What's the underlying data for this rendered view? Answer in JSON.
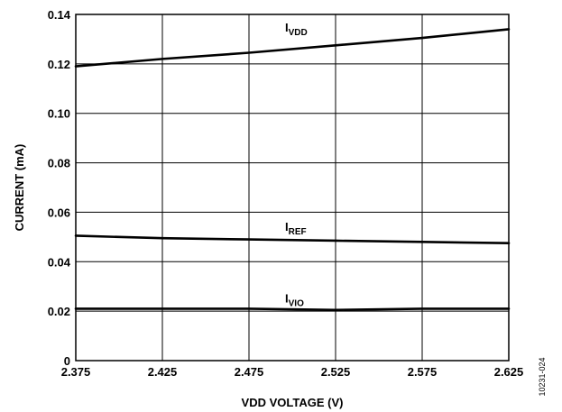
{
  "chart_data": {
    "type": "line",
    "xlabel": "VDD VOLTAGE (V)",
    "ylabel": "CURRENT (mA)",
    "xlim": [
      2.375,
      2.625
    ],
    "ylim": [
      0,
      0.14
    ],
    "x_ticks": [
      2.375,
      2.425,
      2.475,
      2.525,
      2.575,
      2.625
    ],
    "x_tick_labels": [
      "2.375",
      "2.425",
      "2.475",
      "2.525",
      "2.575",
      "2.625"
    ],
    "y_ticks": [
      0,
      0.02,
      0.04,
      0.06,
      0.08,
      0.1,
      0.12,
      0.14
    ],
    "y_tick_labels": [
      "0",
      "0.02",
      "0.04",
      "0.06",
      "0.08",
      "0.10",
      "0.12",
      "0.14"
    ],
    "grid": true,
    "legend": "inline labels above each curve",
    "series": [
      {
        "name": "IVDD",
        "label_main": "I",
        "label_sub": "VDD",
        "label_at": [
          2.5,
          0.133
        ],
        "x": [
          2.375,
          2.425,
          2.475,
          2.525,
          2.575,
          2.625
        ],
        "values": [
          0.119,
          0.122,
          0.1245,
          0.1275,
          0.1305,
          0.134
        ]
      },
      {
        "name": "IREF",
        "label_main": "I",
        "label_sub": "REF",
        "label_at": [
          2.5,
          0.0525
        ],
        "x": [
          2.375,
          2.425,
          2.475,
          2.525,
          2.575,
          2.625
        ],
        "values": [
          0.0505,
          0.0495,
          0.049,
          0.0485,
          0.048,
          0.0475
        ]
      },
      {
        "name": "IVIO",
        "label_main": "I",
        "label_sub": "VIO",
        "label_at": [
          2.5,
          0.0235
        ],
        "x": [
          2.375,
          2.425,
          2.475,
          2.525,
          2.575,
          2.625
        ],
        "values": [
          0.021,
          0.021,
          0.021,
          0.0205,
          0.021,
          0.021
        ]
      }
    ]
  },
  "figure_id": "10231-024"
}
